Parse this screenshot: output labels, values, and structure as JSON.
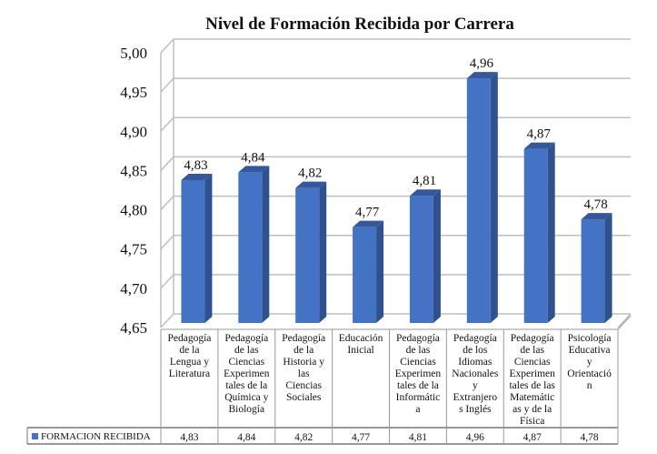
{
  "chart_data": {
    "type": "bar",
    "title": "Nivel de Formación Recibida por Carrera",
    "categories": [
      "Pedagogía de la Lengua y Literatura",
      "Pedagogía de las Ciencias Experimentales de la Química y Biología",
      "Pedagogía de la Historia y las Ciencias Sociales",
      "Educación Inicial",
      "Pedagogía de las Ciencias Experimentales de la Informática",
      "Pedagogía de los Idiomas Nacionales y Extranjeros Inglés",
      "Pedagogía de las Ciencias Experimentales de las Matemáticas y de la Física",
      "Psicología Educativa y Orientación"
    ],
    "category_lines": [
      [
        "Pedagogía",
        "de la",
        "Lengua y",
        "Literatura"
      ],
      [
        "Pedagogía",
        "de las",
        "Ciencias",
        "Experimen",
        "tales de la",
        "Química y",
        "Biología"
      ],
      [
        "Pedagogía",
        "de la",
        "Historia y",
        "las",
        "Ciencias",
        "Sociales"
      ],
      [
        "Educación",
        "Inicial"
      ],
      [
        "Pedagogía",
        "de las",
        "Ciencias",
        "Experimen",
        "tales de la",
        "Informátic",
        "a"
      ],
      [
        "Pedagogía",
        "de los",
        "Idiomas",
        "Nacionales",
        "y",
        "Extranjero",
        "s Inglés"
      ],
      [
        "Pedagogía",
        "de las",
        "Ciencias",
        "Experimen",
        "tales de las",
        "Matemátic",
        "as y de la",
        "Física"
      ],
      [
        "Psicología",
        "Educativa",
        "y",
        "Orientació",
        "n"
      ]
    ],
    "series": [
      {
        "name": "FORMACION RECIBIDA",
        "values": [
          4.83,
          4.84,
          4.82,
          4.77,
          4.81,
          4.96,
          4.87,
          4.78
        ]
      }
    ],
    "value_labels": [
      "4,83",
      "4,84",
      "4,82",
      "4,77",
      "4,81",
      "4,96",
      "4,87",
      "4,78"
    ],
    "ylim": [
      4.65,
      5.0
    ],
    "yticks": [
      "4,65",
      "4,70",
      "4,75",
      "4,80",
      "4,85",
      "4,90",
      "4,95",
      "5,00"
    ],
    "grid": true,
    "legend": "data-table",
    "colors": {
      "bar_front": "#4472C4",
      "bar_side": "#2F528F",
      "bar_top": "#34589A",
      "grid": "#BFBFBF"
    }
  }
}
